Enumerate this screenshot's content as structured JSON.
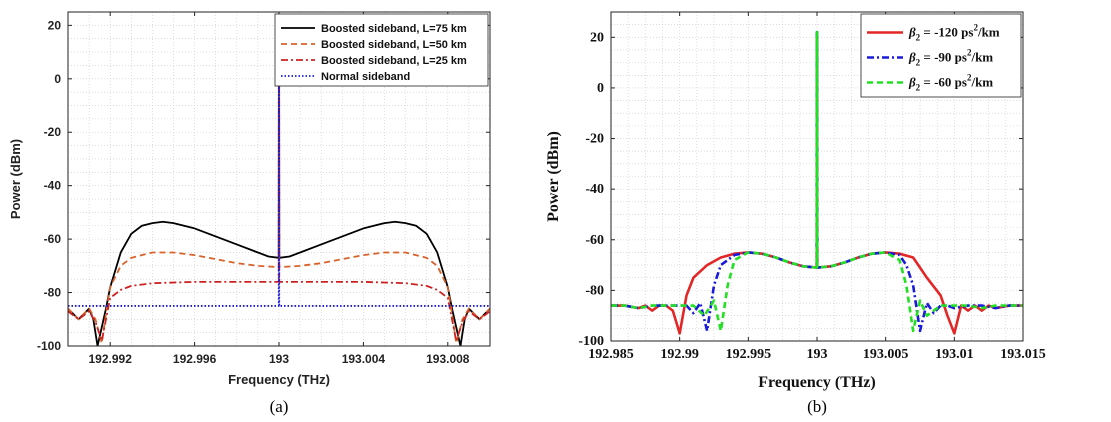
{
  "chart_data": [
    {
      "type": "line",
      "caption": "(a)",
      "xlabel": "Frequency (THz)",
      "ylabel": "Power (dBm)",
      "xlim": [
        192.99,
        193.01
      ],
      "ylim": [
        -100,
        25
      ],
      "xticks": [
        192.992,
        192.996,
        193,
        193.004,
        193.008
      ],
      "xtick_labels": [
        "192.992",
        "192.996",
        "193",
        "193.004",
        "193.008"
      ],
      "yticks": [
        -100,
        -80,
        -60,
        -40,
        -20,
        0,
        20
      ],
      "ytick_labels": [
        "-100",
        "-80",
        "-60",
        "-40",
        "-20",
        "0",
        "20"
      ],
      "grid": "minor dotted",
      "legend_position": "top-right",
      "series": [
        {
          "name": "Boosted sideband, L=75 km",
          "color": "#000000",
          "style": "solid",
          "x": [
            192.99,
            192.9905,
            192.991,
            192.9912,
            192.9914,
            192.9918,
            192.992,
            192.9925,
            192.993,
            192.9935,
            192.994,
            192.9945,
            192.995,
            192.996,
            192.997,
            192.998,
            192.999,
            192.9995,
            193,
            193.0005,
            193.001,
            193.002,
            193.003,
            193.004,
            193.005,
            193.0055,
            193.006,
            193.0065,
            193.007,
            193.0075,
            193.008,
            193.0082,
            193.0086,
            193.0088,
            193.009,
            193.0095,
            193.01
          ],
          "y": [
            -86,
            -90,
            -86,
            -90,
            -100,
            -86,
            -78,
            -65,
            -58,
            -55,
            -54,
            -53.5,
            -54,
            -56,
            -59,
            -62,
            -65,
            -66.5,
            -67,
            -66.5,
            -65,
            -62,
            -59,
            -56,
            -54,
            -53.5,
            -54,
            -55,
            -58,
            -65,
            -78,
            -86,
            -100,
            -90,
            -86,
            -90,
            -86
          ],
          "peak": 22
        },
        {
          "name": "Boosted sideband, L=50 km",
          "color": "#d9622b",
          "style": "dashed",
          "x": [
            192.99,
            192.9905,
            192.991,
            192.9913,
            192.9916,
            192.9918,
            192.992,
            192.9925,
            192.993,
            192.994,
            192.995,
            192.996,
            192.997,
            192.998,
            192.999,
            193,
            193.001,
            193.002,
            193.003,
            193.004,
            193.005,
            193.006,
            193.007,
            193.0075,
            193.008,
            193.0082,
            193.0084,
            193.0087,
            193.009,
            193.0095,
            193.01
          ],
          "y": [
            -86,
            -90,
            -86,
            -90,
            -99,
            -88,
            -78,
            -70,
            -67,
            -65,
            -65,
            -66,
            -67.5,
            -69,
            -70,
            -70.5,
            -70,
            -69,
            -67.5,
            -66,
            -65,
            -65,
            -67,
            -70,
            -78,
            -88,
            -99,
            -90,
            -86,
            -90,
            -86
          ],
          "peak": 22
        },
        {
          "name": "Boosted sideband, L=25 km",
          "color": "#cc2222",
          "style": "dashdot",
          "x": [
            192.99,
            192.9905,
            192.991,
            192.9913,
            192.9916,
            192.9918,
            192.992,
            192.9925,
            192.993,
            192.994,
            192.996,
            192.998,
            193,
            193.002,
            193.004,
            193.006,
            193.007,
            193.0075,
            193.008,
            193.0082,
            193.0084,
            193.0087,
            193.009,
            193.0095,
            193.01
          ],
          "y": [
            -87,
            -90,
            -87,
            -91,
            -98,
            -90,
            -82,
            -79,
            -77.5,
            -76.5,
            -76,
            -76,
            -76,
            -76,
            -76,
            -76.5,
            -77.5,
            -79,
            -82,
            -90,
            -98,
            -91,
            -87,
            -90,
            -87
          ],
          "peak": 22
        },
        {
          "name": "Normal sideband",
          "color": "#1a1acc",
          "style": "dotted",
          "x": [
            192.99,
            193.01
          ],
          "y": [
            -85,
            -85
          ],
          "peak": 22
        }
      ]
    },
    {
      "type": "line",
      "caption": "(b)",
      "xlabel": "Frequency (THz)",
      "ylabel": "Power (dBm)",
      "xlim": [
        192.985,
        193.015
      ],
      "ylim": [
        -100,
        30
      ],
      "xticks": [
        192.985,
        192.99,
        192.995,
        193,
        193.005,
        193.01,
        193.015
      ],
      "xtick_labels": [
        "192.985",
        "192.99",
        "192.995",
        "193",
        "193.005",
        "193.01",
        "193.015"
      ],
      "yticks": [
        -100,
        -80,
        -60,
        -40,
        -20,
        0,
        20
      ],
      "ytick_labels": [
        "-100",
        "-80",
        "-60",
        "-40",
        "-20",
        "0",
        "20"
      ],
      "grid": "minor dotted",
      "legend_position": "top-right",
      "series": [
        {
          "name": "β2 = -120 ps2/km",
          "legend_prefix": "β",
          "legend_sub": "2",
          "legend_mid": " = -120 ps",
          "legend_sup": "2",
          "legend_suffix": "/km",
          "color": "#e32626",
          "style": "solid",
          "x": [
            192.985,
            192.986,
            192.987,
            192.9875,
            192.988,
            192.9885,
            192.989,
            192.9895,
            192.99,
            192.9905,
            192.991,
            192.992,
            192.993,
            192.994,
            192.995,
            192.996,
            192.997,
            192.998,
            192.999,
            193,
            193.001,
            193.002,
            193.003,
            193.004,
            193.005,
            193.006,
            193.007,
            193.008,
            193.009,
            193.0095,
            193.01,
            193.0105,
            193.011,
            193.0115,
            193.012,
            193.0125,
            193.013,
            193.014,
            193.015
          ],
          "y": [
            -86,
            -86,
            -87,
            -86,
            -88,
            -86,
            -86,
            -88,
            -97,
            -82,
            -75,
            -70,
            -67,
            -65.5,
            -65,
            -65.5,
            -67,
            -69,
            -70.5,
            -71,
            -70.5,
            -69,
            -67,
            -65.5,
            -65,
            -65.5,
            -67,
            -75,
            -82,
            -90,
            -97,
            -86,
            -88,
            -86,
            -88,
            -86,
            -87,
            -86,
            -86
          ],
          "peak": 22
        },
        {
          "name": "β2 = -90 ps2/km",
          "legend_prefix": "β",
          "legend_sub": "2",
          "legend_mid": " = -90 ps",
          "legend_sup": "2",
          "legend_suffix": "/km",
          "color": "#1a1adb",
          "style": "dashdot",
          "x": [
            192.985,
            192.986,
            192.987,
            192.988,
            192.989,
            192.9905,
            192.991,
            192.9915,
            192.992,
            192.9925,
            192.993,
            192.994,
            192.995,
            192.996,
            192.997,
            192.998,
            192.999,
            193,
            193.001,
            193.002,
            193.003,
            193.004,
            193.005,
            193.006,
            193.0065,
            193.007,
            193.0075,
            193.008,
            193.0085,
            193.009,
            193.0095,
            193.01,
            193.011,
            193.012,
            193.013,
            193.014,
            193.015
          ],
          "y": [
            -86,
            -86,
            -87,
            -86,
            -86,
            -86,
            -89,
            -85,
            -96,
            -78,
            -70,
            -66,
            -65,
            -65.5,
            -67,
            -69,
            -70.5,
            -71,
            -70.5,
            -69,
            -67,
            -65.5,
            -65,
            -66,
            -70,
            -78,
            -96,
            -85,
            -89,
            -86,
            -86,
            -87,
            -86,
            -86,
            -87,
            -86,
            -86
          ],
          "peak": 22
        },
        {
          "name": "β2 = -60 ps2/km",
          "legend_prefix": "β",
          "legend_sub": "2",
          "legend_mid": " = -60 ps",
          "legend_sup": "2",
          "legend_suffix": "/km",
          "color": "#22e022",
          "style": "dashed",
          "x": [
            192.985,
            192.986,
            192.987,
            192.988,
            192.989,
            192.99,
            192.991,
            192.9918,
            192.9925,
            192.993,
            192.9935,
            192.994,
            192.995,
            192.996,
            192.997,
            192.998,
            192.999,
            193,
            193.001,
            193.002,
            193.003,
            193.004,
            193.005,
            193.006,
            193.0065,
            193.007,
            193.0075,
            193.008,
            193.009,
            193.01,
            193.011,
            193.012,
            193.013,
            193.014,
            193.015
          ],
          "y": [
            -86,
            -86,
            -87,
            -86,
            -86,
            -86,
            -86,
            -90,
            -84,
            -96,
            -78,
            -68,
            -65,
            -65.5,
            -67,
            -69,
            -70.5,
            -71,
            -70.5,
            -69,
            -67,
            -65.5,
            -65,
            -68,
            -78,
            -96,
            -84,
            -90,
            -86,
            -86,
            -86,
            -87,
            -86,
            -86,
            -86
          ],
          "peak": 22
        }
      ]
    }
  ]
}
